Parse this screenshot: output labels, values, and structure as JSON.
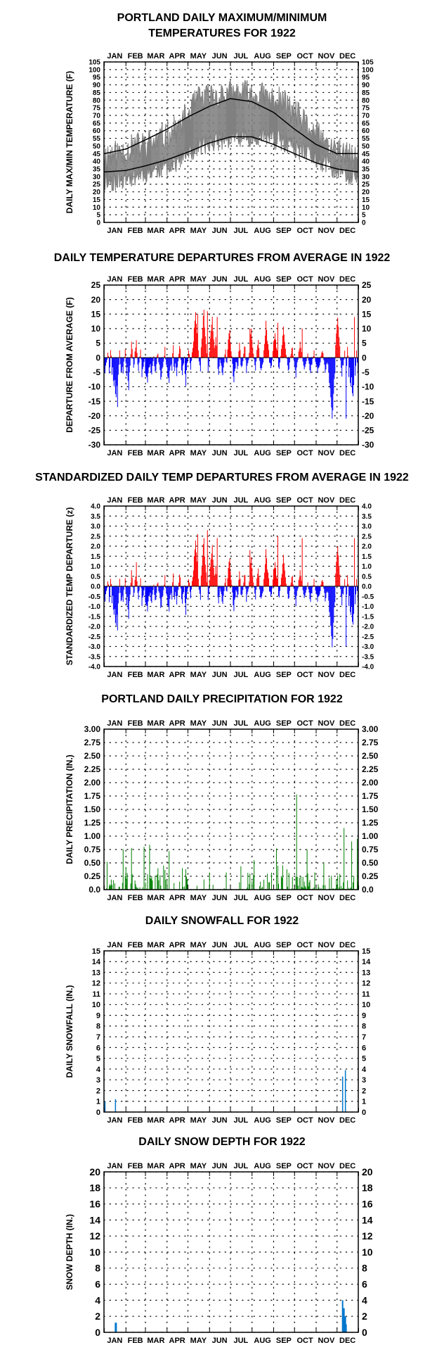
{
  "months": [
    "JAN",
    "FEB",
    "MAR",
    "APR",
    "MAY",
    "JUN",
    "JUL",
    "AUG",
    "SEP",
    "OCT",
    "NOV",
    "DEC"
  ],
  "colors": {
    "positive": "#ff0000",
    "negative": "#0000ff",
    "precip": "#008000",
    "snow": "#0077cc",
    "observed": "#808080",
    "normal": "#000000"
  },
  "chart_data": [
    {
      "type": "line",
      "title": [
        "PORTLAND DAILY MAXIMUM/MINIMUM",
        "TEMPERATURES FOR 1922"
      ],
      "ylabel": "DAILY MAX/MIN TEMPERATURE (F)",
      "ylim": [
        0,
        105
      ],
      "yticks": [
        "0",
        "5",
        "10",
        "15",
        "20",
        "25",
        "30",
        "35",
        "40",
        "45",
        "50",
        "55",
        "60",
        "65",
        "70",
        "75",
        "80",
        "85",
        "90",
        "95",
        "100",
        "105"
      ],
      "normal_high": {
        "day": [
          1,
          32,
          60,
          91,
          121,
          152,
          182,
          213,
          244,
          274,
          305,
          335,
          365
        ],
        "value": [
          45,
          48,
          54,
          61,
          69,
          76,
          81,
          79,
          72,
          61,
          51,
          45,
          45
        ]
      },
      "normal_low": {
        "day": [
          1,
          32,
          60,
          91,
          121,
          152,
          182,
          213,
          244,
          274,
          305,
          335,
          365
        ],
        "value": [
          33,
          34,
          37,
          41,
          46,
          52,
          56,
          56,
          51,
          45,
          39,
          35,
          33
        ]
      },
      "observed_max_monthly": {
        "month": [
          "JAN",
          "FEB",
          "MAR",
          "APR",
          "MAY",
          "JUN",
          "JUL",
          "AUG",
          "SEP",
          "OCT",
          "NOV",
          "DEC"
        ],
        "value": [
          44,
          49,
          53,
          61,
          80,
          83,
          84,
          82,
          78,
          64,
          50,
          42
        ]
      },
      "observed_min_monthly": {
        "month": [
          "JAN",
          "FEB",
          "MAR",
          "APR",
          "MAY",
          "JUN",
          "JUL",
          "AUG",
          "SEP",
          "OCT",
          "NOV",
          "DEC"
        ],
        "value": [
          27,
          31,
          35,
          40,
          50,
          54,
          56,
          57,
          52,
          45,
          38,
          30
        ]
      }
    },
    {
      "type": "bar",
      "title": "DAILY TEMPERATURE DEPARTURES FROM AVERAGE IN 1922",
      "ylabel": "DEPARTURE FROM AVERAGE (F)",
      "ylim": [
        -30,
        25
      ],
      "yticks": [
        "-30",
        "-25",
        "-20",
        "-15",
        "-10",
        "-5",
        "0",
        "5",
        "10",
        "15",
        "20",
        "25"
      ],
      "peaks": {
        "day": [
          20,
          47,
          135,
          149,
          163,
          210,
          250,
          285,
          348,
          360
        ],
        "value": [
          -17,
          6,
          15,
          16,
          14,
          10,
          12,
          10,
          -21,
          14
        ]
      }
    },
    {
      "type": "bar",
      "title": "STANDARDIZED DAILY TEMP DEPARTURES FROM AVERAGE IN 1922",
      "ylabel": "STANDARDIZED TEMP DEPARTURE (z)",
      "ylim": [
        -4,
        4
      ],
      "yticks": [
        "-4.0",
        "-3.5",
        "-3.0",
        "-2.5",
        "-2.0",
        "-1.5",
        "-1.0",
        "-0.5",
        "0.0",
        "0.5",
        "1.0",
        "1.5",
        "2.0",
        "2.5",
        "3.0",
        "3.5",
        "4.0"
      ],
      "peaks": {
        "day": [
          20,
          47,
          135,
          149,
          163,
          210,
          250,
          285,
          348,
          360
        ],
        "value": [
          -2.2,
          1.2,
          2.6,
          2.8,
          2.4,
          1.8,
          2.5,
          2.4,
          -3.0,
          2.4
        ]
      }
    },
    {
      "type": "bar",
      "title": "PORTLAND DAILY PRECIPITATION FOR 1922",
      "ylabel": "DAILY PRECIPITATION (IN.)",
      "ylim": [
        0,
        3
      ],
      "yticks": [
        "0.0",
        "0.25",
        "0.50",
        "0.75",
        "1.00",
        "1.25",
        "1.50",
        "1.75",
        "2.00",
        "2.25",
        "2.50",
        "2.75",
        "3.00"
      ],
      "peaks": {
        "day": [
          5,
          28,
          40,
          58,
          66,
          86,
          94,
          216,
          248,
          277,
          292,
          316,
          345,
          356,
          364
        ],
        "value": [
          0.52,
          0.75,
          0.78,
          0.8,
          0.84,
          0.45,
          0.72,
          0.55,
          0.77,
          1.78,
          0.75,
          0.5,
          1.15,
          0.9,
          0.95
        ]
      }
    },
    {
      "type": "bar",
      "title": "DAILY SNOWFALL FOR 1922",
      "ylabel": "DAILY SNOWFALL (IN.)",
      "ylim": [
        0,
        15
      ],
      "yticks": [
        "0",
        "1",
        "2",
        "3",
        "4",
        "5",
        "6",
        "7",
        "8",
        "9",
        "10",
        "11",
        "12",
        "13",
        "14",
        "15"
      ],
      "bars": {
        "day": [
          2,
          17,
          343,
          347
        ],
        "value": [
          1.0,
          1.2,
          3.3,
          3.9
        ]
      }
    },
    {
      "type": "bar",
      "title": "DAILY SNOW DEPTH FOR 1922",
      "ylabel": "SNOW DEPTH (IN.)",
      "ylim": [
        0,
        20
      ],
      "yticks": [
        "0",
        "2",
        "4",
        "6",
        "8",
        "10",
        "12",
        "14",
        "16",
        "18",
        "20"
      ],
      "bars": {
        "day": [
          17,
          18,
          343,
          344,
          345,
          346,
          347,
          348
        ],
        "value": [
          1.2,
          1.2,
          4,
          3,
          3,
          2,
          2,
          1
        ]
      }
    }
  ]
}
